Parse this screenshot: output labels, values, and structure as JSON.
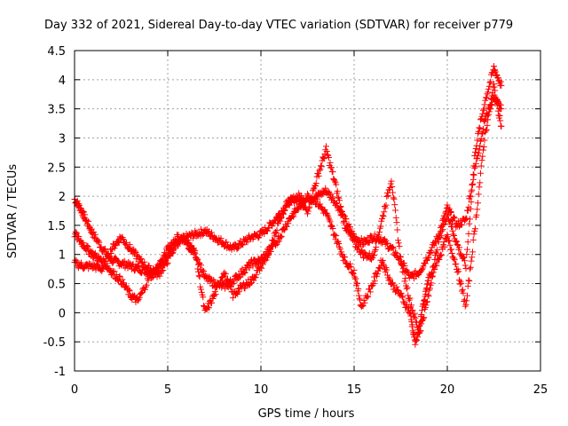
{
  "chart_data": {
    "type": "scatter",
    "title": "Day 332 of 2021, Sidereal Day-to-day VTEC variation (SDTVAR) for receiver p779",
    "xlabel": "GPS time / hours",
    "ylabel": "SDTVAR / TECUs",
    "xlim": [
      0,
      25
    ],
    "ylim": [
      -1,
      4.5
    ],
    "xticks": [
      0,
      5,
      10,
      15,
      20,
      25
    ],
    "xtick_labels": [
      "0",
      "5",
      "10",
      "15",
      "20",
      "25"
    ],
    "yticks": [
      -1,
      -0.5,
      0,
      0.5,
      1,
      1.5,
      2,
      2.5,
      3,
      3.5,
      4,
      4.5
    ],
    "ytick_labels": [
      "-1",
      "-0.5",
      "0",
      "0.5",
      "1",
      "1.5",
      "2",
      "2.5",
      "3",
      "3.5",
      "4",
      "4.5"
    ],
    "grid": true,
    "marker": "+",
    "color": "#ff0000",
    "series": [
      {
        "name": "SDTVAR",
        "note": "dense continuous tracks of '+' markers, approximated",
        "tracks": [
          {
            "x": [
              0.0,
              0.3,
              0.6,
              1.0,
              1.5,
              2.0,
              2.5,
              3.0,
              3.5,
              4.0,
              4.5,
              5.0,
              5.5,
              6.0,
              6.5,
              7.0,
              7.5,
              8.0,
              8.5,
              9.0,
              9.5,
              10.0,
              10.5,
              11.0,
              11.5,
              12.0,
              12.5,
              13.0,
              13.5,
              14.0,
              14.5,
              15.0,
              15.5,
              16.0,
              16.5,
              17.0,
              17.5,
              18.0,
              18.5,
              19.0,
              19.5,
              20.0,
              20.5,
              21.0,
              21.5,
              22.0,
              22.5,
              22.9
            ],
            "y": [
              1.95,
              1.8,
              1.6,
              1.35,
              1.1,
              0.9,
              0.85,
              0.8,
              0.75,
              0.7,
              0.8,
              1.0,
              1.2,
              1.3,
              1.35,
              1.4,
              1.3,
              1.2,
              1.1,
              1.2,
              1.3,
              1.35,
              1.5,
              1.7,
              1.9,
              2.0,
              1.95,
              2.0,
              2.1,
              1.9,
              1.6,
              1.3,
              1.2,
              1.3,
              1.25,
              1.1,
              0.9,
              0.6,
              0.7,
              1.0,
              1.3,
              1.8,
              1.5,
              1.6,
              2.5,
              3.3,
              3.7,
              3.5
            ]
          },
          {
            "x": [
              0.0,
              0.5,
              1.0,
              1.5,
              2.0,
              2.5,
              3.0,
              3.5,
              4.0,
              4.5,
              5.0,
              5.5,
              6.0,
              6.5,
              7.0,
              7.5,
              8.0,
              8.5,
              9.0,
              9.5,
              10.0,
              10.5,
              11.0,
              11.5,
              12.0,
              12.5,
              13.0,
              13.5,
              14.0,
              14.5,
              15.0,
              15.5,
              16.0,
              16.5,
              17.0,
              17.5,
              18.0,
              18.5,
              19.0,
              19.5,
              20.0,
              20.5,
              21.0,
              21.5,
              22.0,
              22.5,
              22.9
            ],
            "y": [
              0.85,
              0.8,
              0.8,
              0.75,
              1.1,
              1.3,
              1.1,
              0.9,
              0.75,
              0.65,
              0.9,
              1.2,
              1.25,
              1.0,
              0.6,
              0.5,
              0.45,
              0.55,
              0.7,
              0.85,
              0.9,
              1.1,
              1.6,
              1.95,
              1.9,
              1.75,
              2.3,
              2.8,
              2.2,
              1.5,
              1.2,
              1.0,
              0.95,
              1.6,
              2.3,
              0.9,
              0.2,
              -0.35,
              0.3,
              1.2,
              1.7,
              1.2,
              0.8,
              2.8,
              3.6,
              4.2,
              3.9
            ]
          },
          {
            "x": [
              0.0,
              0.4,
              0.8,
              1.2,
              1.6,
              2.0,
              2.5,
              3.0,
              3.4,
              4.0,
              4.5,
              5.0,
              5.5,
              6.0,
              6.5,
              7.0,
              7.5,
              8.0,
              8.5,
              9.0,
              9.5,
              10.0,
              10.5,
              11.0,
              11.5,
              12.0,
              12.5,
              13.0,
              13.5,
              14.0,
              14.5,
              15.0,
              15.4,
              16.0,
              16.5,
              17.0,
              17.5,
              18.0,
              18.3,
              18.7,
              19.0,
              19.5,
              20.0,
              20.5,
              21.0,
              21.5,
              22.0,
              22.5,
              22.9
            ],
            "y": [
              1.35,
              1.2,
              1.05,
              0.95,
              0.85,
              0.7,
              0.55,
              0.3,
              0.2,
              0.6,
              0.75,
              1.1,
              1.3,
              1.2,
              1.0,
              0.0,
              0.3,
              0.7,
              0.3,
              0.45,
              0.55,
              0.8,
              1.05,
              1.3,
              1.6,
              1.8,
              2.0,
              1.9,
              1.7,
              1.3,
              0.9,
              0.7,
              0.1,
              0.5,
              0.9,
              0.5,
              0.3,
              0.0,
              -0.55,
              0.1,
              0.6,
              0.9,
              1.3,
              0.8,
              0.1,
              1.5,
              3.0,
              3.9,
              3.2
            ]
          }
        ]
      }
    ]
  }
}
